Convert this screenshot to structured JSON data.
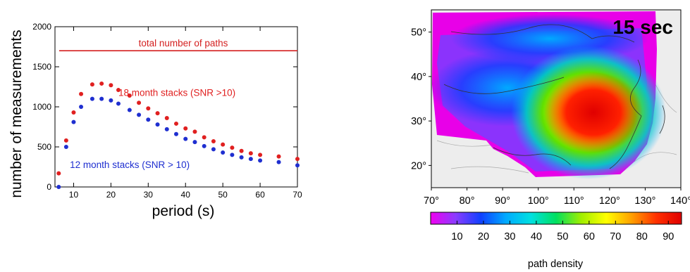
{
  "chart_data": [
    {
      "type": "scatter",
      "xlabel": "period (s)",
      "ylabel": "number of measurements",
      "xlim": [
        5,
        70
      ],
      "ylim": [
        0,
        2000
      ],
      "xticks": [
        10,
        20,
        30,
        40,
        50,
        60,
        70
      ],
      "yticks": [
        0,
        500,
        1000,
        1500,
        2000
      ],
      "grid": false,
      "reference_line": {
        "label": "total number of paths",
        "y": 1700,
        "color": "#d42020"
      },
      "series": [
        {
          "name": "18 month stacks (SNR >10)",
          "color": "#e02020",
          "x": [
            6,
            8,
            10,
            12,
            15,
            17.5,
            20,
            22,
            25,
            27.5,
            30,
            32.5,
            35,
            37.5,
            40,
            42.5,
            45,
            47.5,
            50,
            52.5,
            55,
            57.5,
            60,
            65,
            70
          ],
          "y": [
            170,
            580,
            930,
            1160,
            1280,
            1290,
            1270,
            1210,
            1140,
            1050,
            980,
            920,
            860,
            790,
            730,
            690,
            620,
            570,
            530,
            490,
            450,
            420,
            400,
            380,
            350
          ]
        },
        {
          "name": "12 month stacks (SNR > 10)",
          "color": "#1f2fd0",
          "x": [
            6,
            8,
            10,
            12,
            15,
            17.5,
            20,
            22,
            25,
            27.5,
            30,
            32.5,
            35,
            37.5,
            40,
            42.5,
            45,
            47.5,
            50,
            52.5,
            55,
            57.5,
            60,
            65,
            70
          ],
          "y": [
            0,
            500,
            810,
            1000,
            1100,
            1100,
            1080,
            1040,
            960,
            900,
            840,
            780,
            720,
            660,
            600,
            560,
            510,
            470,
            430,
            400,
            370,
            350,
            330,
            310,
            270
          ]
        }
      ]
    },
    {
      "type": "heatmap",
      "title": "15 sec",
      "xlabel": "",
      "ylabel": "",
      "xlim": [
        70,
        140
      ],
      "ylim": [
        15,
        55
      ],
      "xticks": [
        "70°",
        "80°",
        "90°",
        "100°",
        "110°",
        "120°",
        "130°",
        "140°"
      ],
      "yticks": [
        "20°",
        "30°",
        "40°",
        "50°"
      ],
      "colorbar": {
        "label": "path density",
        "range": [
          0,
          95
        ],
        "ticks": [
          "10",
          "20",
          "30",
          "40",
          "50",
          "60",
          "70",
          "80",
          "90"
        ],
        "colors": [
          "#f000f0",
          "#8a3cff",
          "#1040ff",
          "#00aaff",
          "#00e0e0",
          "#00e060",
          "#a0ee00",
          "#ffff00",
          "#ffa000",
          "#ff3000",
          "#e00000"
        ]
      }
    }
  ]
}
